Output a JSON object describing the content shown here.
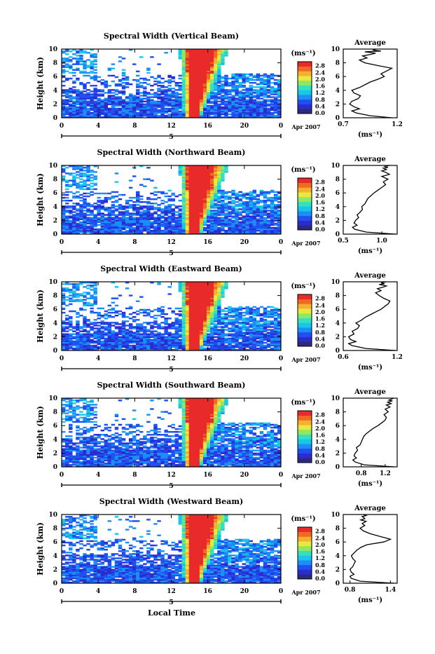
{
  "figure": {
    "xlabel_bottom": "Local Time",
    "date_label": "Apr 2007",
    "day_label": "5",
    "ylabel": "Height (km)",
    "unit_label": "(ms⁻¹)",
    "avg_title": "Average",
    "avg_xlabel": "(ms⁻¹)",
    "colorbar_ticks": [
      "0.0",
      "0.4",
      "0.8",
      "1.2",
      "1.6",
      "2.0",
      "2.4",
      "2.8"
    ],
    "colorbar_colors": [
      "#2b2b7e",
      "#2b2bd0",
      "#2050f0",
      "#1a8ff5",
      "#19c6e8",
      "#35e0c0",
      "#8fe860",
      "#e8e840",
      "#f5b030",
      "#f06a20",
      "#e82a2a"
    ],
    "accent_red": "#e8302a"
  },
  "chart_data": [
    {
      "type": "heatmap",
      "title": "Spectral Width (Vertical Beam)",
      "xlabel": "Local Time",
      "ylabel": "Height (km)",
      "xlim": [
        0,
        24
      ],
      "ylim": [
        0,
        10
      ],
      "xticks": [
        "0",
        "4",
        "8",
        "12",
        "16",
        "20",
        "0"
      ],
      "yticks": [
        "0",
        "2",
        "4",
        "6",
        "8",
        "10"
      ],
      "colorbar": {
        "label": "(ms⁻¹)",
        "range": [
          0.0,
          2.8
        ],
        "ticks": [
          "0.0",
          "0.4",
          "0.8",
          "1.2",
          "1.6",
          "2.0",
          "2.4",
          "2.8"
        ]
      },
      "average_profile": {
        "title": "Average",
        "xlabel": "(ms⁻¹)",
        "xlim": [
          0.7,
          1.2
        ],
        "xticks": [
          "0.7",
          "1.2"
        ],
        "ylim": [
          0,
          10
        ],
        "yticks": [
          "0",
          "2",
          "4",
          "6",
          "8",
          "10"
        ],
        "x": [
          1.15,
          0.95,
          0.82,
          0.78,
          0.85,
          0.8,
          0.76,
          0.78,
          0.84,
          0.86,
          0.8,
          0.78,
          0.85,
          0.9,
          0.95,
          1.02,
          1.08,
          1.05,
          1.1,
          1.15,
          1.02,
          0.9,
          0.85,
          0.92,
          0.88,
          0.95,
          1.0,
          0.9,
          1.05,
          0.98,
          1.0
        ],
        "y": [
          0.0,
          0.3,
          0.7,
          1.0,
          1.3,
          1.6,
          2.0,
          2.4,
          2.8,
          3.2,
          3.6,
          4.0,
          4.4,
          4.8,
          5.2,
          5.6,
          6.0,
          6.4,
          6.8,
          7.2,
          7.6,
          8.0,
          8.4,
          8.7,
          9.0,
          9.2,
          9.4,
          9.6,
          9.7,
          9.85,
          10.0
        ]
      }
    },
    {
      "type": "heatmap",
      "title": "Spectral Width (Northward Beam)",
      "xlabel": "Local Time",
      "ylabel": "Height (km)",
      "xlim": [
        0,
        24
      ],
      "ylim": [
        0,
        10
      ],
      "xticks": [
        "0",
        "4",
        "8",
        "12",
        "16",
        "20",
        "0"
      ],
      "yticks": [
        "0",
        "2",
        "4",
        "6",
        "8",
        "10"
      ],
      "colorbar": {
        "label": "(ms⁻¹)",
        "range": [
          0.0,
          2.8
        ],
        "ticks": [
          "0.0",
          "0.4",
          "0.8",
          "1.2",
          "1.6",
          "2.0",
          "2.4",
          "2.8"
        ]
      },
      "average_profile": {
        "title": "Average",
        "xlabel": "(ms⁻¹)",
        "xlim": [
          0.5,
          1.2
        ],
        "xticks": [
          "0.5",
          "1.0"
        ],
        "ylim": [
          0,
          10
        ],
        "yticks": [
          "0",
          "2",
          "4",
          "6",
          "8",
          "10"
        ],
        "x": [
          1.18,
          0.8,
          0.65,
          0.62,
          0.68,
          0.64,
          0.66,
          0.7,
          0.68,
          0.72,
          0.75,
          0.74,
          0.78,
          0.8,
          0.82,
          0.86,
          0.9,
          0.95,
          1.0,
          1.05,
          1.02,
          1.08,
          1.0,
          1.1,
          1.05,
          1.0,
          1.06,
          1.02,
          1.08,
          1.04,
          1.1
        ],
        "y": [
          0.0,
          0.3,
          0.7,
          1.0,
          1.3,
          1.6,
          2.0,
          2.4,
          2.8,
          3.2,
          3.6,
          4.0,
          4.4,
          4.8,
          5.2,
          5.6,
          6.0,
          6.4,
          6.8,
          7.2,
          7.6,
          8.0,
          8.4,
          8.7,
          9.0,
          9.2,
          9.4,
          9.6,
          9.7,
          9.85,
          10.0
        ]
      }
    },
    {
      "type": "heatmap",
      "title": "Spectral Width (Eastward Beam)",
      "xlabel": "Local Time",
      "ylabel": "Height (km)",
      "xlim": [
        0,
        24
      ],
      "ylim": [
        0,
        10
      ],
      "xticks": [
        "0",
        "4",
        "8",
        "12",
        "16",
        "20",
        "0"
      ],
      "yticks": [
        "0",
        "2",
        "4",
        "6",
        "8",
        "10"
      ],
      "colorbar": {
        "label": "(ms⁻¹)",
        "range": [
          0.0,
          2.8
        ],
        "ticks": [
          "0.0",
          "0.4",
          "0.8",
          "1.2",
          "1.6",
          "2.0",
          "2.4",
          "2.8"
        ]
      },
      "average_profile": {
        "title": "Average",
        "xlabel": "(ms⁻¹)",
        "xlim": [
          0.6,
          1.2
        ],
        "xticks": [
          "0.6",
          "1.2"
        ],
        "ylim": [
          0,
          10
        ],
        "yticks": [
          "0",
          "2",
          "4",
          "6",
          "8",
          "10"
        ],
        "x": [
          1.18,
          0.85,
          0.7,
          0.66,
          0.74,
          0.68,
          0.66,
          0.72,
          0.7,
          0.76,
          0.78,
          0.74,
          0.8,
          0.84,
          0.9,
          0.96,
          1.02,
          1.06,
          1.1,
          1.12,
          1.05,
          1.0,
          0.96,
          1.02,
          0.98,
          1.04,
          1.08,
          1.0,
          1.06,
          1.02,
          1.08
        ],
        "y": [
          0.0,
          0.3,
          0.7,
          1.0,
          1.3,
          1.6,
          2.0,
          2.4,
          2.8,
          3.2,
          3.6,
          4.0,
          4.4,
          4.8,
          5.2,
          5.6,
          6.0,
          6.4,
          6.8,
          7.2,
          7.6,
          8.0,
          8.4,
          8.7,
          9.0,
          9.2,
          9.4,
          9.6,
          9.7,
          9.85,
          10.0
        ]
      }
    },
    {
      "type": "heatmap",
      "title": "Spectral Width (Southward Beam)",
      "xlabel": "Local Time",
      "ylabel": "Height (km)",
      "xlim": [
        0,
        24
      ],
      "ylim": [
        0,
        10
      ],
      "xticks": [
        "0",
        "4",
        "8",
        "12",
        "16",
        "20",
        "0"
      ],
      "yticks": [
        "0",
        "2",
        "4",
        "6",
        "8",
        "10"
      ],
      "colorbar": {
        "label": "(ms⁻¹)",
        "range": [
          0.0,
          2.8
        ],
        "ticks": [
          "0.0",
          "0.4",
          "0.8",
          "1.2",
          "1.6",
          "2.0",
          "2.4",
          "2.8"
        ]
      },
      "average_profile": {
        "title": "Average",
        "xlabel": "(ms⁻¹)",
        "xlim": [
          0.5,
          1.4
        ],
        "xticks": [
          "0.8",
          "1.2"
        ],
        "ylim": [
          0,
          10
        ],
        "yticks": [
          "0",
          "2",
          "4",
          "6",
          "8",
          "10"
        ],
        "x": [
          1.35,
          0.85,
          0.7,
          0.66,
          0.72,
          0.68,
          0.7,
          0.74,
          0.72,
          0.78,
          0.8,
          0.82,
          0.84,
          0.88,
          0.94,
          1.0,
          1.08,
          1.14,
          1.2,
          1.22,
          1.18,
          1.25,
          1.2,
          1.28,
          1.22,
          1.3,
          1.24,
          1.32,
          1.26,
          1.3,
          1.34
        ],
        "y": [
          0.0,
          0.3,
          0.7,
          1.0,
          1.3,
          1.6,
          2.0,
          2.4,
          2.8,
          3.2,
          3.6,
          4.0,
          4.4,
          4.8,
          5.2,
          5.6,
          6.0,
          6.4,
          6.8,
          7.2,
          7.6,
          8.0,
          8.4,
          8.7,
          9.0,
          9.2,
          9.4,
          9.6,
          9.7,
          9.85,
          10.0
        ]
      }
    },
    {
      "type": "heatmap",
      "title": "Spectral Width (Westward Beam)",
      "xlabel": "Local Time",
      "ylabel": "Height (km)",
      "xlim": [
        0,
        24
      ],
      "ylim": [
        0,
        10
      ],
      "xticks": [
        "0",
        "4",
        "8",
        "12",
        "16",
        "20",
        "0"
      ],
      "yticks": [
        "0",
        "2",
        "4",
        "6",
        "8",
        "10"
      ],
      "colorbar": {
        "label": "(ms⁻¹)",
        "range": [
          0.0,
          2.8
        ],
        "ticks": [
          "0.0",
          "0.4",
          "0.8",
          "1.2",
          "1.6",
          "2.0",
          "2.4",
          "2.8"
        ]
      },
      "average_profile": {
        "title": "Average",
        "xlabel": "(ms⁻¹)",
        "xlim": [
          0.7,
          1.5
        ],
        "xticks": [
          "0.8",
          "1.4"
        ],
        "ylim": [
          0,
          10
        ],
        "yticks": [
          "0",
          "2",
          "4",
          "6",
          "8",
          "10"
        ],
        "x": [
          1.45,
          0.95,
          0.82,
          0.8,
          0.86,
          0.82,
          0.8,
          0.84,
          0.86,
          0.88,
          0.84,
          0.82,
          0.86,
          0.9,
          0.96,
          1.05,
          1.3,
          1.4,
          1.25,
          1.1,
          1.0,
          0.95,
          1.02,
          0.98,
          1.04,
          0.96,
          1.02,
          1.0,
          0.98,
          1.04,
          1.0
        ],
        "y": [
          0.0,
          0.3,
          0.7,
          1.0,
          1.3,
          1.6,
          2.0,
          2.4,
          2.8,
          3.2,
          3.6,
          4.0,
          4.4,
          4.8,
          5.2,
          5.6,
          6.0,
          6.4,
          6.8,
          7.2,
          7.6,
          8.0,
          8.4,
          8.7,
          9.0,
          9.2,
          9.4,
          9.6,
          9.7,
          9.85,
          10.0
        ]
      }
    }
  ]
}
